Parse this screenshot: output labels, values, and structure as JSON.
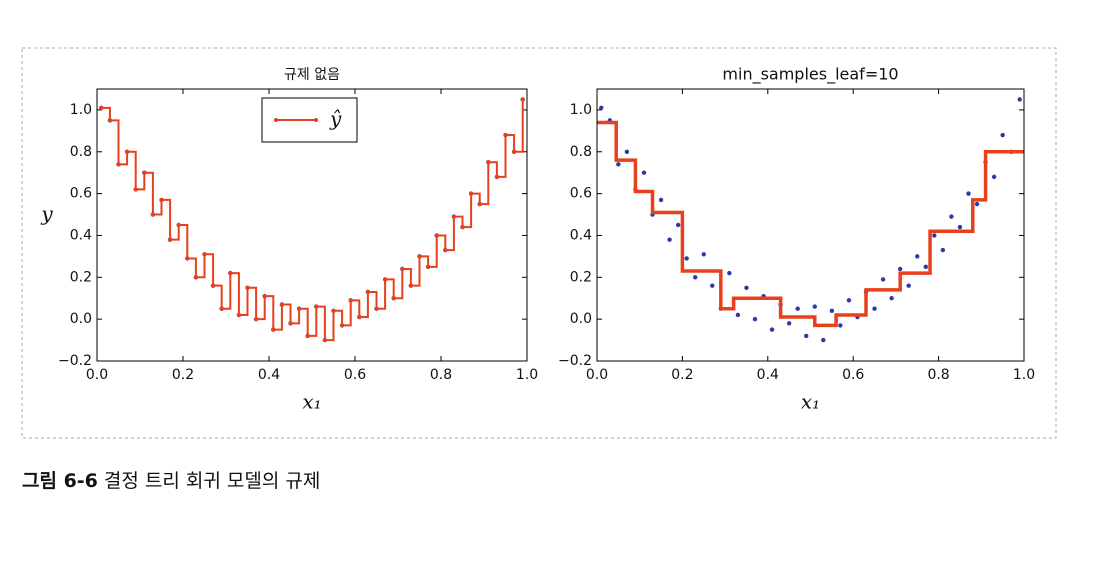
{
  "chart_data": [
    {
      "type": "step",
      "title": "규제 없음",
      "xlabel": "x₁",
      "ylabel": "y",
      "xlim": [
        0,
        1
      ],
      "ylim": [
        -0.2,
        1.1
      ],
      "xticks": [
        {
          "value": 0,
          "label": "0.0"
        },
        {
          "value": 0.2,
          "label": "0.2"
        },
        {
          "value": 0.4,
          "label": "0.4"
        },
        {
          "value": 0.6,
          "label": "0.6"
        },
        {
          "value": 0.8,
          "label": "0.8"
        },
        {
          "value": 1,
          "label": "1.0"
        }
      ],
      "yticks": [
        {
          "value": -0.2,
          "label": "−0.2"
        },
        {
          "value": 0,
          "label": "0.0"
        },
        {
          "value": 0.2,
          "label": "0.2"
        },
        {
          "value": 0.4,
          "label": "0.4"
        },
        {
          "value": 0.6,
          "label": "0.6"
        },
        {
          "value": 0.8,
          "label": "0.8"
        },
        {
          "value": 1,
          "label": "1.0"
        }
      ],
      "legend": "upper center",
      "series": [
        {
          "style": "scatter",
          "color": "#2a3aa8",
          "x": [
            0.01,
            0.03,
            0.05,
            0.07,
            0.09,
            0.11,
            0.13,
            0.15,
            0.17,
            0.19,
            0.21,
            0.23,
            0.25,
            0.27,
            0.29,
            0.31,
            0.33,
            0.35,
            0.37,
            0.39,
            0.41,
            0.43,
            0.45,
            0.47,
            0.49,
            0.51,
            0.53,
            0.55,
            0.57,
            0.59,
            0.61,
            0.63,
            0.65,
            0.67,
            0.69,
            0.71,
            0.73,
            0.75,
            0.77,
            0.79,
            0.81,
            0.83,
            0.85,
            0.87,
            0.89,
            0.91,
            0.93,
            0.95,
            0.97,
            0.99
          ],
          "values": [
            1.01,
            0.95,
            0.74,
            0.8,
            0.62,
            0.7,
            0.5,
            0.57,
            0.38,
            0.45,
            0.29,
            0.2,
            0.31,
            0.16,
            0.05,
            0.22,
            0.02,
            0.15,
            0,
            0.11,
            -0.05,
            0.07,
            -0.02,
            0.05,
            -0.08,
            0.06,
            -0.1,
            0.04,
            -0.03,
            0.09,
            0.01,
            0.13,
            0.05,
            0.19,
            0.1,
            0.24,
            0.16,
            0.3,
            0.25,
            0.4,
            0.33,
            0.49,
            0.44,
            0.6,
            0.55,
            0.75,
            0.68,
            0.88,
            0.8,
            1.05
          ]
        },
        {
          "style": "step",
          "name": "ŷ",
          "color": "#e8401c",
          "marker": true,
          "x": [
            0.01,
            0.03,
            0.05,
            0.07,
            0.09,
            0.11,
            0.13,
            0.15,
            0.17,
            0.19,
            0.21,
            0.23,
            0.25,
            0.27,
            0.29,
            0.31,
            0.33,
            0.35,
            0.37,
            0.39,
            0.41,
            0.43,
            0.45,
            0.47,
            0.49,
            0.51,
            0.53,
            0.55,
            0.57,
            0.59,
            0.61,
            0.63,
            0.65,
            0.67,
            0.69,
            0.71,
            0.73,
            0.75,
            0.77,
            0.79,
            0.81,
            0.83,
            0.85,
            0.87,
            0.89,
            0.91,
            0.93,
            0.95,
            0.97,
            0.99
          ],
          "values": [
            1.01,
            0.95,
            0.74,
            0.8,
            0.62,
            0.7,
            0.5,
            0.57,
            0.38,
            0.45,
            0.29,
            0.2,
            0.31,
            0.16,
            0.05,
            0.22,
            0.02,
            0.15,
            0,
            0.11,
            -0.05,
            0.07,
            -0.02,
            0.05,
            -0.08,
            0.06,
            -0.1,
            0.04,
            -0.03,
            0.09,
            0.01,
            0.13,
            0.05,
            0.19,
            0.1,
            0.24,
            0.16,
            0.3,
            0.25,
            0.4,
            0.33,
            0.49,
            0.44,
            0.6,
            0.55,
            0.75,
            0.68,
            0.88,
            0.8,
            1.05
          ]
        }
      ]
    },
    {
      "type": "step",
      "title": "min_samples_leaf=10",
      "xlabel": "x₁",
      "xlim": [
        0,
        1
      ],
      "ylim": [
        -0.2,
        1.1
      ],
      "xticks": [
        {
          "value": 0,
          "label": "0.0"
        },
        {
          "value": 0.2,
          "label": "0.2"
        },
        {
          "value": 0.4,
          "label": "0.4"
        },
        {
          "value": 0.6,
          "label": "0.6"
        },
        {
          "value": 0.8,
          "label": "0.8"
        },
        {
          "value": 1,
          "label": "1.0"
        }
      ],
      "yticks": [
        {
          "value": -0.2,
          "label": "−0.2"
        },
        {
          "value": 0,
          "label": "0.0"
        },
        {
          "value": 0.2,
          "label": "0.2"
        },
        {
          "value": 0.4,
          "label": "0.4"
        },
        {
          "value": 0.6,
          "label": "0.6"
        },
        {
          "value": 0.8,
          "label": "0.8"
        },
        {
          "value": 1,
          "label": "1.0"
        }
      ],
      "series": [
        {
          "style": "scatter",
          "color": "#2a3aa8",
          "x": [
            0.01,
            0.03,
            0.05,
            0.07,
            0.09,
            0.11,
            0.13,
            0.15,
            0.17,
            0.19,
            0.21,
            0.23,
            0.25,
            0.27,
            0.29,
            0.31,
            0.33,
            0.35,
            0.37,
            0.39,
            0.41,
            0.43,
            0.45,
            0.47,
            0.49,
            0.51,
            0.53,
            0.55,
            0.57,
            0.59,
            0.61,
            0.63,
            0.65,
            0.67,
            0.69,
            0.71,
            0.73,
            0.75,
            0.77,
            0.79,
            0.81,
            0.83,
            0.85,
            0.87,
            0.89,
            0.91,
            0.93,
            0.95,
            0.97,
            0.99
          ],
          "values": [
            1.01,
            0.95,
            0.74,
            0.8,
            0.62,
            0.7,
            0.5,
            0.57,
            0.38,
            0.45,
            0.29,
            0.2,
            0.31,
            0.16,
            0.05,
            0.22,
            0.02,
            0.15,
            0,
            0.11,
            -0.05,
            0.07,
            -0.02,
            0.05,
            -0.08,
            0.06,
            -0.1,
            0.04,
            -0.03,
            0.09,
            0.01,
            0.13,
            0.05,
            0.19,
            0.1,
            0.24,
            0.16,
            0.3,
            0.25,
            0.4,
            0.33,
            0.49,
            0.44,
            0.6,
            0.55,
            0.75,
            0.68,
            0.88,
            0.8,
            1.05
          ]
        },
        {
          "style": "step",
          "color": "#e8401c",
          "x": [
            0,
            0.045,
            0.09,
            0.13,
            0.2,
            0.29,
            0.32,
            0.43,
            0.51,
            0.56,
            0.63,
            0.71,
            0.78,
            0.88,
            0.91,
            1
          ],
          "values": [
            0.94,
            0.76,
            0.61,
            0.51,
            0.23,
            0.05,
            0.1,
            0.01,
            -0.03,
            0.02,
            0.14,
            0.22,
            0.42,
            0.57,
            0.8,
            0.8
          ]
        }
      ]
    }
  ],
  "caption": {
    "figure": "그림 6-6",
    "text": "결정 트리 회귀 모델의 규제"
  }
}
